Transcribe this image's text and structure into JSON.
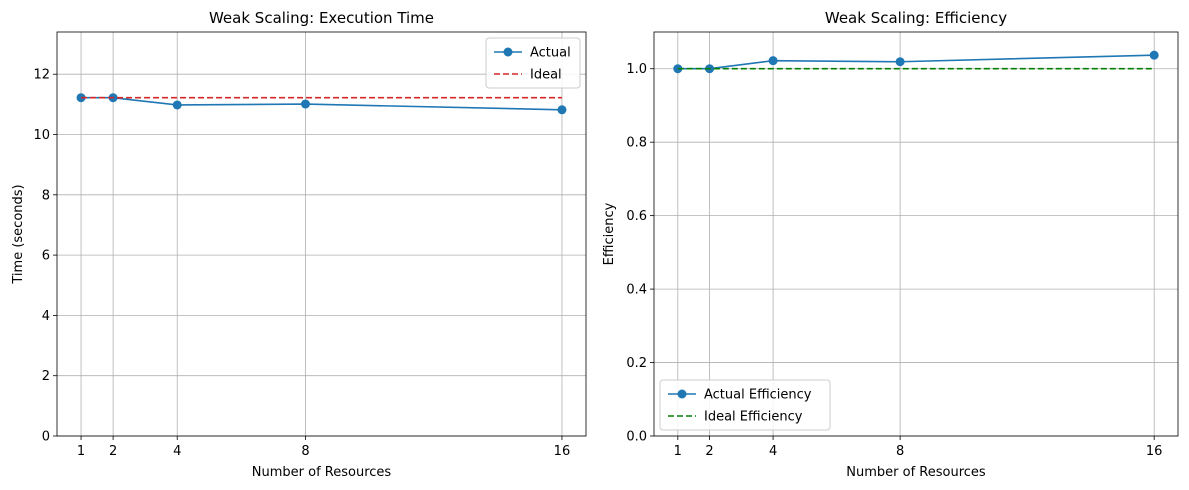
{
  "chart_data": [
    {
      "type": "line",
      "title": "Weak Scaling: Execution Time",
      "xlabel": "Number of Resources",
      "ylabel": "Time (seconds)",
      "x": [
        1,
        2,
        4,
        8,
        16
      ],
      "x_ticks": [
        "1",
        "2",
        "4",
        "8",
        "16"
      ],
      "xlim": [
        0.25,
        16.75
      ],
      "ylim": [
        0,
        13.4
      ],
      "y_ticks": [
        "0",
        "2",
        "4",
        "6",
        "8",
        "10",
        "12"
      ],
      "y_tick_values": [
        0,
        2,
        4,
        6,
        8,
        10,
        12
      ],
      "grid": true,
      "legend_position": "top-right",
      "series": [
        {
          "name": "Actual",
          "values": [
            11.22,
            11.22,
            10.98,
            11.01,
            10.82
          ],
          "color": "#1f77b4",
          "style": "solid",
          "marker": "circle"
        },
        {
          "name": "Ideal",
          "values": [
            11.22,
            11.22,
            11.22,
            11.22,
            11.22
          ],
          "color": "#d62728",
          "style": "dashed",
          "marker": "none"
        }
      ]
    },
    {
      "type": "line",
      "title": "Weak Scaling: Efficiency",
      "xlabel": "Number of Resources",
      "ylabel": "Efficiency",
      "x": [
        1,
        2,
        4,
        8,
        16
      ],
      "x_ticks": [
        "1",
        "2",
        "4",
        "8",
        "16"
      ],
      "xlim": [
        0.25,
        16.75
      ],
      "ylim": [
        0,
        1.1
      ],
      "y_ticks": [
        "0.0",
        "0.2",
        "0.4",
        "0.6",
        "0.8",
        "1.0"
      ],
      "y_tick_values": [
        0,
        0.2,
        0.4,
        0.6,
        0.8,
        1.0
      ],
      "grid": true,
      "legend_position": "bottom-left",
      "series": [
        {
          "name": "Actual Efficiency",
          "values": [
            1.0,
            1.0,
            1.022,
            1.019,
            1.037
          ],
          "color": "#1f77b4",
          "style": "solid",
          "marker": "circle"
        },
        {
          "name": "Ideal Efficiency",
          "values": [
            1.0,
            1.0,
            1.0,
            1.0,
            1.0
          ],
          "color": "#008000",
          "style": "dashed",
          "marker": "none"
        }
      ]
    }
  ]
}
